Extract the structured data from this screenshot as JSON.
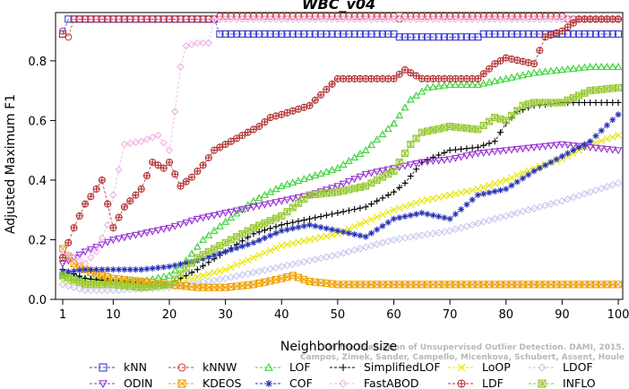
{
  "chart_data": {
    "type": "line",
    "title": "WBC_v04",
    "xlabel": "Neighborhood size",
    "ylabel": "Adjusted Maximum F1",
    "xlim": [
      1,
      100
    ],
    "ylim": [
      0,
      0.95
    ],
    "xticks": [
      1,
      10,
      20,
      30,
      40,
      50,
      60,
      70,
      80,
      90,
      100
    ],
    "yticks": [
      0.0,
      0.2,
      0.4,
      0.6,
      0.8
    ],
    "ytick_labels": [
      "0.0",
      "0.2",
      "0.4",
      "0.6",
      "0.8"
    ],
    "grid": false,
    "legend_position": "bottom",
    "watermark": [
      "On the Evaluation of Unsupervised Outlier Detection. DAMI, 2015.",
      "Campos, Zimek, Sander, Campello, Micenkova, Schubert, Assent, Houle"
    ],
    "series": [
      {
        "name": "kNN",
        "color": "#3c3cd2",
        "marker": "square",
        "points": [
          [
            1,
            0.89
          ],
          [
            2,
            0.94
          ],
          [
            5,
            0.94
          ],
          [
            10,
            0.94
          ],
          [
            20,
            0.94
          ],
          [
            28,
            0.94
          ],
          [
            29,
            0.89
          ],
          [
            40,
            0.89
          ],
          [
            50,
            0.89
          ],
          [
            60,
            0.89
          ],
          [
            61,
            0.88
          ],
          [
            70,
            0.88
          ],
          [
            75,
            0.88
          ],
          [
            76,
            0.89
          ],
          [
            90,
            0.89
          ],
          [
            100,
            0.89
          ]
        ]
      },
      {
        "name": "kNNW",
        "color": "#d23c3c",
        "marker": "circle",
        "points": [
          [
            1,
            0.9
          ],
          [
            2,
            0.88
          ],
          [
            3,
            0.94
          ],
          [
            10,
            0.94
          ],
          [
            20,
            0.94
          ],
          [
            28,
            0.94
          ],
          [
            29,
            0.95
          ],
          [
            40,
            0.95
          ],
          [
            50,
            0.95
          ],
          [
            60,
            0.95
          ],
          [
            61,
            0.94
          ],
          [
            62,
            0.95
          ],
          [
            90,
            0.95
          ],
          [
            91,
            0.94
          ],
          [
            100,
            0.94
          ]
        ]
      },
      {
        "name": "LOF",
        "color": "#3cd23c",
        "marker": "triangle",
        "points": [
          [
            1,
            0.08
          ],
          [
            5,
            0.07
          ],
          [
            10,
            0.06
          ],
          [
            15,
            0.06
          ],
          [
            20,
            0.08
          ],
          [
            23,
            0.13
          ],
          [
            26,
            0.2
          ],
          [
            30,
            0.26
          ],
          [
            35,
            0.33
          ],
          [
            40,
            0.38
          ],
          [
            45,
            0.41
          ],
          [
            50,
            0.44
          ],
          [
            55,
            0.5
          ],
          [
            60,
            0.59
          ],
          [
            63,
            0.67
          ],
          [
            66,
            0.71
          ],
          [
            70,
            0.72
          ],
          [
            75,
            0.72
          ],
          [
            80,
            0.74
          ],
          [
            85,
            0.76
          ],
          [
            90,
            0.77
          ],
          [
            95,
            0.78
          ],
          [
            100,
            0.78
          ]
        ]
      },
      {
        "name": "SimplifiedLOF",
        "color": "#000000",
        "marker": "plus",
        "points": [
          [
            1,
            0.1
          ],
          [
            5,
            0.07
          ],
          [
            10,
            0.06
          ],
          [
            15,
            0.05
          ],
          [
            20,
            0.05
          ],
          [
            25,
            0.1
          ],
          [
            30,
            0.16
          ],
          [
            35,
            0.22
          ],
          [
            40,
            0.25
          ],
          [
            45,
            0.27
          ],
          [
            50,
            0.29
          ],
          [
            55,
            0.31
          ],
          [
            60,
            0.36
          ],
          [
            62,
            0.39
          ],
          [
            65,
            0.46
          ],
          [
            70,
            0.5
          ],
          [
            75,
            0.51
          ],
          [
            78,
            0.53
          ],
          [
            80,
            0.59
          ],
          [
            82,
            0.63
          ],
          [
            85,
            0.65
          ],
          [
            90,
            0.66
          ],
          [
            95,
            0.66
          ],
          [
            100,
            0.66
          ]
        ]
      },
      {
        "name": "LoOP",
        "color": "#e6e600",
        "marker": "x",
        "points": [
          [
            1,
            0.06
          ],
          [
            10,
            0.05
          ],
          [
            20,
            0.05
          ],
          [
            30,
            0.1
          ],
          [
            40,
            0.18
          ],
          [
            50,
            0.22
          ],
          [
            55,
            0.26
          ],
          [
            60,
            0.3
          ],
          [
            65,
            0.33
          ],
          [
            70,
            0.35
          ],
          [
            75,
            0.37
          ],
          [
            80,
            0.4
          ],
          [
            85,
            0.44
          ],
          [
            90,
            0.47
          ],
          [
            95,
            0.52
          ],
          [
            100,
            0.55
          ]
        ]
      },
      {
        "name": "LDOF",
        "color": "#c8c8f0",
        "marker": "diamond",
        "points": [
          [
            1,
            0.05
          ],
          [
            5,
            0.03
          ],
          [
            10,
            0.03
          ],
          [
            20,
            0.04
          ],
          [
            30,
            0.07
          ],
          [
            40,
            0.11
          ],
          [
            50,
            0.15
          ],
          [
            60,
            0.2
          ],
          [
            70,
            0.23
          ],
          [
            80,
            0.28
          ],
          [
            90,
            0.33
          ],
          [
            95,
            0.36
          ],
          [
            100,
            0.39
          ]
        ]
      },
      {
        "name": "ODIN",
        "color": "#9632d2",
        "marker": "triangle-down",
        "points": [
          [
            1,
            0.12
          ],
          [
            5,
            0.16
          ],
          [
            10,
            0.2
          ],
          [
            15,
            0.22
          ],
          [
            20,
            0.24
          ],
          [
            25,
            0.27
          ],
          [
            30,
            0.29
          ],
          [
            35,
            0.31
          ],
          [
            40,
            0.33
          ],
          [
            45,
            0.35
          ],
          [
            50,
            0.38
          ],
          [
            55,
            0.42
          ],
          [
            60,
            0.44
          ],
          [
            65,
            0.46
          ],
          [
            70,
            0.47
          ],
          [
            75,
            0.49
          ],
          [
            80,
            0.5
          ],
          [
            85,
            0.51
          ],
          [
            90,
            0.52
          ],
          [
            95,
            0.51
          ],
          [
            100,
            0.5
          ]
        ]
      },
      {
        "name": "KDEOS",
        "color": "#f0a000",
        "marker": "square-x",
        "points": [
          [
            1,
            0.17
          ],
          [
            3,
            0.12
          ],
          [
            6,
            0.09
          ],
          [
            10,
            0.07
          ],
          [
            15,
            0.06
          ],
          [
            20,
            0.05
          ],
          [
            25,
            0.04
          ],
          [
            30,
            0.04
          ],
          [
            35,
            0.05
          ],
          [
            40,
            0.07
          ],
          [
            42,
            0.08
          ],
          [
            45,
            0.06
          ],
          [
            50,
            0.05
          ],
          [
            60,
            0.05
          ],
          [
            70,
            0.05
          ],
          [
            80,
            0.05
          ],
          [
            90,
            0.05
          ],
          [
            100,
            0.05
          ]
        ]
      },
      {
        "name": "COF",
        "color": "#2832b4",
        "marker": "star",
        "points": [
          [
            1,
            0.09
          ],
          [
            5,
            0.1
          ],
          [
            10,
            0.1
          ],
          [
            15,
            0.1
          ],
          [
            20,
            0.11
          ],
          [
            25,
            0.13
          ],
          [
            30,
            0.16
          ],
          [
            35,
            0.19
          ],
          [
            40,
            0.23
          ],
          [
            45,
            0.25
          ],
          [
            50,
            0.23
          ],
          [
            55,
            0.21
          ],
          [
            60,
            0.27
          ],
          [
            65,
            0.29
          ],
          [
            70,
            0.27
          ],
          [
            75,
            0.35
          ],
          [
            80,
            0.37
          ],
          [
            85,
            0.43
          ],
          [
            90,
            0.48
          ],
          [
            95,
            0.53
          ],
          [
            100,
            0.62
          ]
        ]
      },
      {
        "name": "FastABOD",
        "color": "#f0b4e6",
        "marker": "diamond",
        "points": [
          [
            1,
            0.16
          ],
          [
            3,
            0.14
          ],
          [
            5,
            0.12
          ],
          [
            7,
            0.16
          ],
          [
            9,
            0.25
          ],
          [
            10,
            0.35
          ],
          [
            12,
            0.52
          ],
          [
            15,
            0.53
          ],
          [
            18,
            0.55
          ],
          [
            20,
            0.5
          ],
          [
            21,
            0.63
          ],
          [
            22,
            0.78
          ],
          [
            23,
            0.85
          ],
          [
            25,
            0.86
          ],
          [
            27,
            0.86
          ],
          [
            28,
            0.94
          ],
          [
            40,
            0.94
          ],
          [
            60,
            0.94
          ],
          [
            100,
            0.94
          ]
        ]
      },
      {
        "name": "LDF",
        "color": "#b43232",
        "marker": "circle-plus",
        "points": [
          [
            1,
            0.14
          ],
          [
            3,
            0.24
          ],
          [
            5,
            0.32
          ],
          [
            7,
            0.37
          ],
          [
            8,
            0.4
          ],
          [
            10,
            0.24
          ],
          [
            12,
            0.31
          ],
          [
            15,
            0.37
          ],
          [
            17,
            0.46
          ],
          [
            19,
            0.44
          ],
          [
            20,
            0.46
          ],
          [
            22,
            0.38
          ],
          [
            24,
            0.41
          ],
          [
            26,
            0.45
          ],
          [
            28,
            0.5
          ],
          [
            30,
            0.52
          ],
          [
            33,
            0.55
          ],
          [
            36,
            0.58
          ],
          [
            38,
            0.61
          ],
          [
            40,
            0.62
          ],
          [
            45,
            0.65
          ],
          [
            50,
            0.74
          ],
          [
            55,
            0.74
          ],
          [
            60,
            0.74
          ],
          [
            62,
            0.77
          ],
          [
            65,
            0.74
          ],
          [
            70,
            0.74
          ],
          [
            75,
            0.74
          ],
          [
            78,
            0.79
          ],
          [
            80,
            0.81
          ],
          [
            85,
            0.79
          ],
          [
            87,
            0.88
          ],
          [
            90,
            0.9
          ],
          [
            93,
            0.94
          ],
          [
            100,
            0.94
          ]
        ]
      },
      {
        "name": "INFLO",
        "color": "#96c832",
        "marker": "square-star",
        "points": [
          [
            1,
            0.08
          ],
          [
            5,
            0.05
          ],
          [
            10,
            0.05
          ],
          [
            15,
            0.04
          ],
          [
            20,
            0.05
          ],
          [
            25,
            0.14
          ],
          [
            30,
            0.19
          ],
          [
            35,
            0.24
          ],
          [
            40,
            0.28
          ],
          [
            45,
            0.35
          ],
          [
            50,
            0.36
          ],
          [
            55,
            0.38
          ],
          [
            60,
            0.43
          ],
          [
            63,
            0.52
          ],
          [
            65,
            0.56
          ],
          [
            70,
            0.58
          ],
          [
            75,
            0.57
          ],
          [
            78,
            0.61
          ],
          [
            80,
            0.6
          ],
          [
            83,
            0.65
          ],
          [
            85,
            0.66
          ],
          [
            90,
            0.66
          ],
          [
            95,
            0.7
          ],
          [
            100,
            0.71
          ]
        ]
      }
    ]
  }
}
